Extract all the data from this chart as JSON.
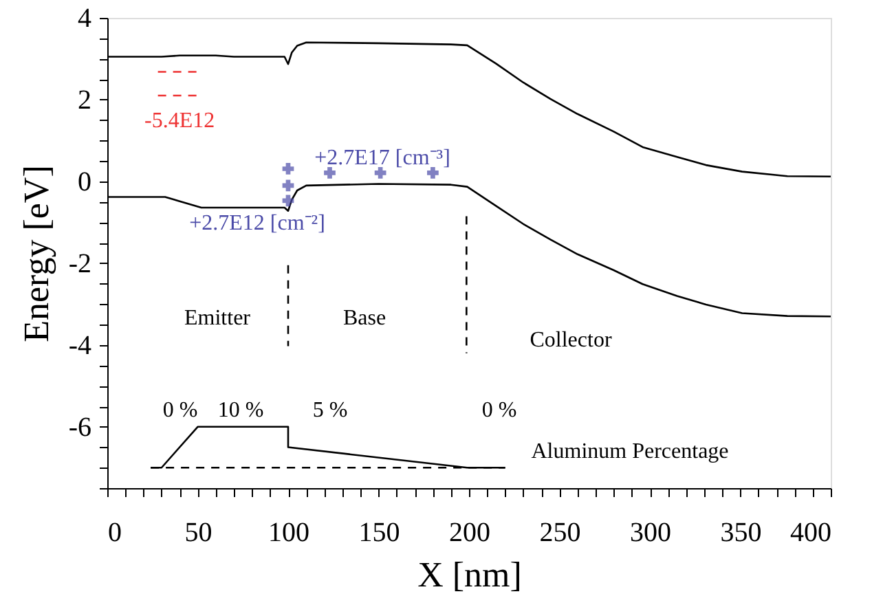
{
  "chart_data": {
    "type": "line",
    "xlabel": "X [nm]",
    "ylabel": "Energy [eV]",
    "xlim": [
      0,
      400
    ],
    "ylim": [
      -7.5,
      4
    ],
    "xticks": [
      {
        "value": 0,
        "label": "0"
      },
      {
        "value": 10,
        "label": null
      },
      {
        "value": 20,
        "label": null
      },
      {
        "value": 30,
        "label": null
      },
      {
        "value": 40,
        "label": null
      },
      {
        "value": 50,
        "label": "50"
      },
      {
        "value": 60,
        "label": null
      },
      {
        "value": 70,
        "label": null
      },
      {
        "value": 80,
        "label": null
      },
      {
        "value": 90,
        "label": null
      },
      {
        "value": 100,
        "label": "100"
      },
      {
        "value": 110,
        "label": null
      },
      {
        "value": 120,
        "label": null
      },
      {
        "value": 130,
        "label": null
      },
      {
        "value": 140,
        "label": null
      },
      {
        "value": 150,
        "label": "150"
      },
      {
        "value": 160,
        "label": null
      },
      {
        "value": 170,
        "label": null
      },
      {
        "value": 180,
        "label": null
      },
      {
        "value": 190,
        "label": null
      },
      {
        "value": 200,
        "label": "200"
      },
      {
        "value": 210,
        "label": null
      },
      {
        "value": 220,
        "label": null
      },
      {
        "value": 230,
        "label": null
      },
      {
        "value": 240,
        "label": null
      },
      {
        "value": 250,
        "label": "250"
      },
      {
        "value": 260,
        "label": null
      },
      {
        "value": 270,
        "label": null
      },
      {
        "value": 280,
        "label": null
      },
      {
        "value": 290,
        "label": null
      },
      {
        "value": 300,
        "label": "300"
      },
      {
        "value": 310,
        "label": null
      },
      {
        "value": 320,
        "label": null
      },
      {
        "value": 330,
        "label": null
      },
      {
        "value": 340,
        "label": null
      },
      {
        "value": 350,
        "label": "350"
      },
      {
        "value": 360,
        "label": null
      },
      {
        "value": 370,
        "label": null
      },
      {
        "value": 380,
        "label": null
      },
      {
        "value": 390,
        "label": null
      },
      {
        "value": 400,
        "label": "400"
      }
    ],
    "yticks": [
      {
        "value": -7.5,
        "label": null
      },
      {
        "value": -7,
        "label": null
      },
      {
        "value": -6.5,
        "label": null
      },
      {
        "value": -6,
        "label": "-6"
      },
      {
        "value": -5.5,
        "label": null
      },
      {
        "value": -5,
        "label": null
      },
      {
        "value": -4.5,
        "label": null
      },
      {
        "value": -4,
        "label": "-4"
      },
      {
        "value": -3.5,
        "label": null
      },
      {
        "value": -3,
        "label": null
      },
      {
        "value": -2.5,
        "label": null
      },
      {
        "value": -2,
        "label": "-2"
      },
      {
        "value": -1.5,
        "label": null
      },
      {
        "value": -1,
        "label": null
      },
      {
        "value": -0.5,
        "label": null
      },
      {
        "value": 0,
        "label": "0"
      },
      {
        "value": 0.5,
        "label": null
      },
      {
        "value": 1,
        "label": null
      },
      {
        "value": 1.5,
        "label": null
      },
      {
        "value": 2,
        "label": "2"
      },
      {
        "value": 2.5,
        "label": null
      },
      {
        "value": 3,
        "label": null
      },
      {
        "value": 3.5,
        "label": null
      },
      {
        "value": 4,
        "label": "4"
      }
    ],
    "grid": false,
    "series": [
      {
        "type": "line",
        "color": "#000000",
        "line_style": "solid",
        "x": [
          0,
          30,
          40,
          60,
          70,
          98,
          100,
          102,
          105,
          110,
          150,
          190,
          199,
          215,
          230,
          245,
          260,
          280,
          296,
          315,
          331,
          351,
          376,
          400
        ],
        "values": [
          3.05,
          3.05,
          3.08,
          3.08,
          3.05,
          3.05,
          2.87,
          3.15,
          3.32,
          3.4,
          3.38,
          3.35,
          3.33,
          2.88,
          2.42,
          2.02,
          1.65,
          1.22,
          0.84,
          0.6,
          0.4,
          0.24,
          0.13,
          0.12
        ]
      },
      {
        "type": "line",
        "color": "#000000",
        "line_style": "solid",
        "x": [
          0,
          32,
          52,
          98,
          100,
          102,
          105,
          110,
          150,
          190,
          199,
          215,
          230,
          245,
          260,
          280,
          296,
          315,
          331,
          351,
          376,
          400
        ],
        "values": [
          -0.38,
          -0.38,
          -0.64,
          -0.64,
          -0.72,
          -0.45,
          -0.22,
          -0.1,
          -0.06,
          -0.08,
          -0.13,
          -0.6,
          -1.04,
          -1.42,
          -1.78,
          -2.17,
          -2.51,
          -2.8,
          -3.01,
          -3.22,
          -3.29,
          -3.3
        ]
      },
      {
        "type": "line",
        "color": "#ee3333",
        "line_style": "dashed",
        "x": [
          28,
          51
        ],
        "values": [
          2.68,
          2.68
        ]
      },
      {
        "type": "line",
        "color": "#ee3333",
        "line_style": "dashed",
        "x": [
          28,
          51
        ],
        "values": [
          2.1,
          2.1
        ]
      },
      {
        "type": "scatter",
        "color": "#4b4ba8",
        "marker": "cross",
        "x": [
          100,
          100,
          100,
          123,
          151,
          180
        ],
        "values": [
          0.31,
          -0.1,
          -0.47,
          0.21,
          0.21,
          0.21
        ]
      },
      {
        "type": "line",
        "color": "#000000",
        "line_style": "dashed",
        "x": [
          100,
          100
        ],
        "values": [
          -2.05,
          -4.03
        ]
      },
      {
        "type": "line",
        "color": "#000000",
        "line_style": "dashed",
        "x": [
          198.6,
          198.6
        ],
        "values": [
          -0.85,
          -4.2
        ]
      },
      {
        "type": "line",
        "color": "#000000",
        "line_style": "solid",
        "x": [
          24,
          30,
          50,
          100,
          100,
          199,
          220
        ],
        "values": [
          -7,
          -7,
          -6,
          -6,
          -6.5,
          -7,
          -7
        ]
      },
      {
        "type": "line",
        "color": "#000000",
        "line_style": "dashed",
        "x": [
          24,
          220
        ],
        "values": [
          -7,
          -7
        ]
      }
    ],
    "annotations": [
      "-5.4E12",
      "+2.7E17 [cm⁻³]",
      "+2.7E12 [cm⁻²]",
      "Emitter",
      "Base",
      "Collector",
      "0 %",
      "10 %",
      "5 %",
      "0 %",
      "Aluminum Percentage"
    ]
  }
}
